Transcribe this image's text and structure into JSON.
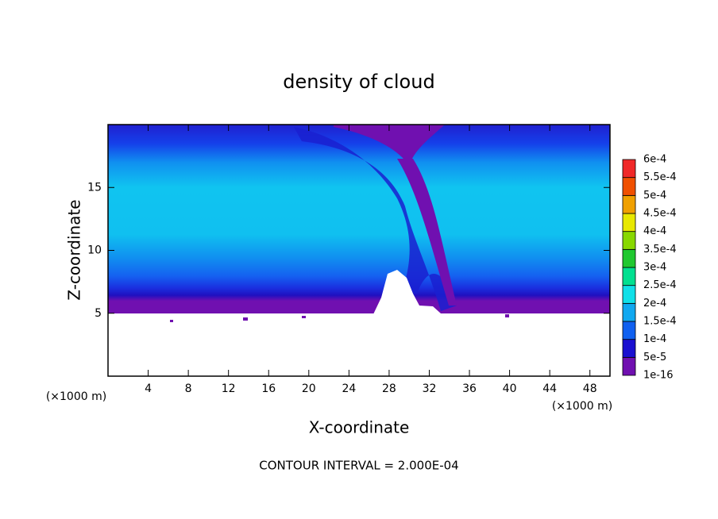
{
  "chart_data": {
    "type": "contour",
    "title": "density of cloud",
    "x_label": "X-coordinate",
    "y_label": "Z-coordinate",
    "x_unit_label": "(×1000 m)",
    "footer": "CONTOUR INTERVAL = 2.000E-04",
    "xlim": [
      0,
      50
    ],
    "ylim": [
      0,
      20
    ],
    "xticks": [
      4,
      8,
      12,
      16,
      20,
      24,
      28,
      32,
      36,
      40,
      44,
      48
    ],
    "yticks": [
      5,
      10,
      15
    ],
    "colorbar": {
      "levels": [
        {
          "value": 1e-16,
          "label": "1e-16"
        },
        {
          "value": 5e-05,
          "label": "5e-5"
        },
        {
          "value": 0.0001,
          "label": "1e-4"
        },
        {
          "value": 0.00015,
          "label": "1.5e-4"
        },
        {
          "value": 0.0002,
          "label": "2e-4"
        },
        {
          "value": 0.00025,
          "label": "2.5e-4"
        },
        {
          "value": 0.0003,
          "label": "3e-4"
        },
        {
          "value": 0.00035,
          "label": "3.5e-4"
        },
        {
          "value": 0.0004,
          "label": "4e-4"
        },
        {
          "value": 0.00045,
          "label": "4.5e-4"
        },
        {
          "value": 0.0005,
          "label": "5e-4"
        },
        {
          "value": 0.00055,
          "label": "5.5e-4"
        },
        {
          "value": 0.0006,
          "label": "6e-4"
        }
      ],
      "colors": [
        "#7010b0",
        "#1a10d0",
        "#1060f0",
        "#10a8f0",
        "#10e0e8",
        "#00e090",
        "#20c830",
        "#88d800",
        "#e8e800",
        "#f0a000",
        "#f05000",
        "#f02828",
        "#f08888"
      ]
    }
  }
}
